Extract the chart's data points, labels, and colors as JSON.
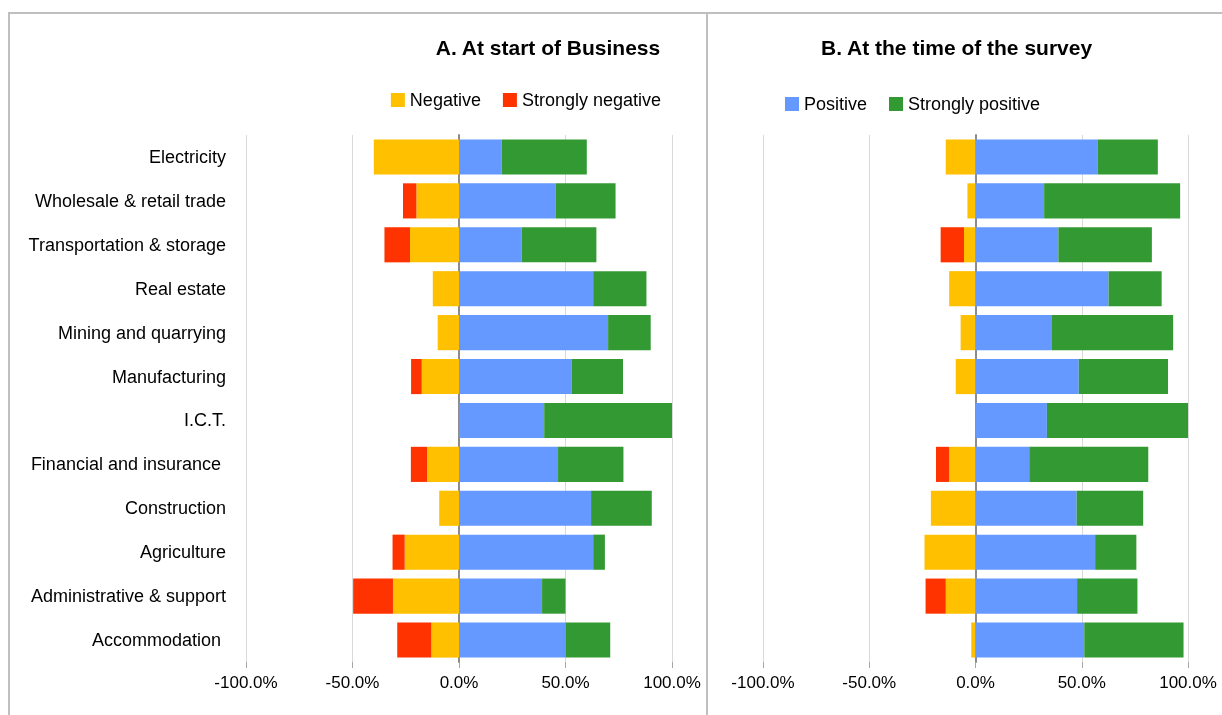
{
  "chart_data": [
    {
      "type": "bar",
      "title": "A. At start of Business",
      "orientation": "horizontal",
      "stacked": true,
      "grid": "x",
      "legend": "top right",
      "categories": [
        "Electricity",
        "Wholesale & retail trade",
        "Transportation & storage",
        "Real estate",
        "Mining and quarrying",
        "Manufacturing",
        "I.C.T.",
        "Financial and insurance ",
        "Construction",
        "Agriculture",
        "Administrative & support",
        "Accommodation "
      ],
      "xlim": [
        -100,
        100
      ],
      "xticks": [
        {
          "value": -100,
          "label": "-100.0%"
        },
        {
          "value": -50,
          "label": "-50.0%"
        },
        {
          "value": 0,
          "label": "0.0%"
        },
        {
          "value": 50,
          "label": "50.0%"
        },
        {
          "value": 100,
          "label": "100.0%"
        }
      ],
      "series": [
        {
          "name": "Negative",
          "color": "#ffc000",
          "values": [
            -40,
            -20,
            -23,
            -12.3,
            -10,
            -17.5,
            null,
            -15,
            -9.3,
            -25.5,
            -31,
            -13
          ]
        },
        {
          "name": "Strongly negative",
          "color": "#ff3300",
          "values": [
            null,
            -6.3,
            -12,
            null,
            null,
            -5,
            null,
            -7.6,
            null,
            -5.7,
            -18.7,
            -16
          ]
        },
        {
          "color": "#6699ff",
          "values": [
            20,
            45.5,
            29.5,
            63,
            70,
            53,
            40,
            46.5,
            62,
            63,
            39,
            50
          ]
        },
        {
          "color": "#339933",
          "values": [
            40,
            28,
            35,
            25,
            20,
            24,
            60,
            30.7,
            28.5,
            5.5,
            11,
            21
          ]
        }
      ]
    },
    {
      "type": "bar",
      "title": "B. At the time of the survey",
      "orientation": "horizontal",
      "stacked": true,
      "grid": "x",
      "legend": "top left",
      "tick_labels": "x",
      "categories": [
        null,
        null,
        null,
        null,
        null,
        null,
        null,
        null,
        null,
        null,
        null,
        null
      ],
      "xlim": [
        -100,
        100
      ],
      "xticks": [
        {
          "value": -100,
          "label": "-100.0%"
        },
        {
          "value": -50,
          "label": "-50.0%"
        },
        {
          "value": 0,
          "label": "0.0%"
        },
        {
          "value": 50,
          "label": "50.0%"
        },
        {
          "value": 100,
          "label": "100.0%"
        }
      ],
      "series": [
        {
          "color": "#ffc000",
          "values": [
            -14,
            -3.8,
            -5.4,
            -12.4,
            -7,
            -9.3,
            null,
            -12.4,
            -21,
            -24,
            -14,
            -2
          ]
        },
        {
          "color": "#ff3300",
          "values": [
            null,
            null,
            -11,
            null,
            null,
            null,
            null,
            -6.2,
            null,
            null,
            -9.5,
            null
          ]
        },
        {
          "name": "Positive",
          "color": "#6699ff",
          "values": [
            57.4,
            32.3,
            39,
            62.6,
            36,
            48.6,
            33.6,
            25.3,
            47.6,
            56.3,
            47.8,
            51.2
          ]
        },
        {
          "name": "Strongly positive",
          "color": "#339933",
          "values": [
            28.4,
            64,
            44,
            25,
            57,
            42,
            66.4,
            56,
            31.3,
            19.4,
            28.4,
            46.7
          ]
        }
      ]
    }
  ]
}
